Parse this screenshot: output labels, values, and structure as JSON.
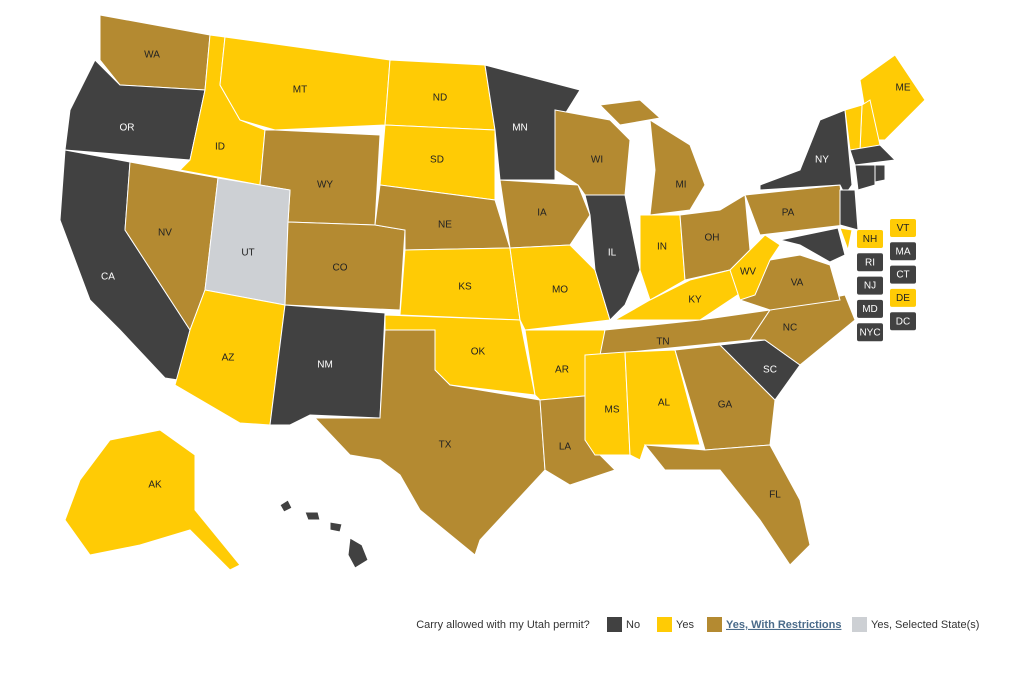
{
  "map": {
    "legend": {
      "title": "Carry allowed with my Utah permit?",
      "items": [
        {
          "label": "No",
          "color": "#414141"
        },
        {
          "label": "Yes",
          "color": "#ffcb05"
        },
        {
          "label": "Yes, With Restrictions",
          "color": "#b48a31",
          "link": true
        },
        {
          "label": "Yes, Selected State(s)",
          "color": "#cdd0d4"
        }
      ]
    },
    "states": [
      {
        "abbr": "WA",
        "status": 2
      },
      {
        "abbr": "OR",
        "status": 0
      },
      {
        "abbr": "CA",
        "status": 0
      },
      {
        "abbr": "ID",
        "status": 1
      },
      {
        "abbr": "NV",
        "status": 2
      },
      {
        "abbr": "MT",
        "status": 1
      },
      {
        "abbr": "WY",
        "status": 2
      },
      {
        "abbr": "UT",
        "status": 3
      },
      {
        "abbr": "CO",
        "status": 2
      },
      {
        "abbr": "AZ",
        "status": 1
      },
      {
        "abbr": "NM",
        "status": 0
      },
      {
        "abbr": "ND",
        "status": 1
      },
      {
        "abbr": "SD",
        "status": 1
      },
      {
        "abbr": "NE",
        "status": 2
      },
      {
        "abbr": "KS",
        "status": 1
      },
      {
        "abbr": "OK",
        "status": 1
      },
      {
        "abbr": "TX",
        "status": 2
      },
      {
        "abbr": "MN",
        "status": 0
      },
      {
        "abbr": "IA",
        "status": 2
      },
      {
        "abbr": "MO",
        "status": 1
      },
      {
        "abbr": "AR",
        "status": 1
      },
      {
        "abbr": "LA",
        "status": 2
      },
      {
        "abbr": "WI",
        "status": 2
      },
      {
        "abbr": "IL",
        "status": 0
      },
      {
        "abbr": "MI",
        "status": 2
      },
      {
        "abbr": "IN",
        "status": 1
      },
      {
        "abbr": "OH",
        "status": 2
      },
      {
        "abbr": "KY",
        "status": 1
      },
      {
        "abbr": "TN",
        "status": 2
      },
      {
        "abbr": "MS",
        "status": 1
      },
      {
        "abbr": "AL",
        "status": 1
      },
      {
        "abbr": "GA",
        "status": 2
      },
      {
        "abbr": "FL",
        "status": 2
      },
      {
        "abbr": "SC",
        "status": 0
      },
      {
        "abbr": "NC",
        "status": 2
      },
      {
        "abbr": "VA",
        "status": 2
      },
      {
        "abbr": "WV",
        "status": 1
      },
      {
        "abbr": "PA",
        "status": 2
      },
      {
        "abbr": "NY",
        "status": 0
      },
      {
        "abbr": "ME",
        "status": 1
      },
      {
        "abbr": "AK",
        "status": 1
      },
      {
        "abbr": "HI",
        "status": 0
      }
    ],
    "boxed": [
      {
        "abbr": "NH",
        "status": 1
      },
      {
        "abbr": "VT",
        "status": 1
      },
      {
        "abbr": "RI",
        "status": 0
      },
      {
        "abbr": "MA",
        "status": 0
      },
      {
        "abbr": "NJ",
        "status": 0
      },
      {
        "abbr": "CT",
        "status": 0
      },
      {
        "abbr": "MD",
        "status": 0
      },
      {
        "abbr": "DE",
        "status": 1
      },
      {
        "abbr": "NYC",
        "status": 0
      },
      {
        "abbr": "DC",
        "status": 0
      }
    ]
  }
}
